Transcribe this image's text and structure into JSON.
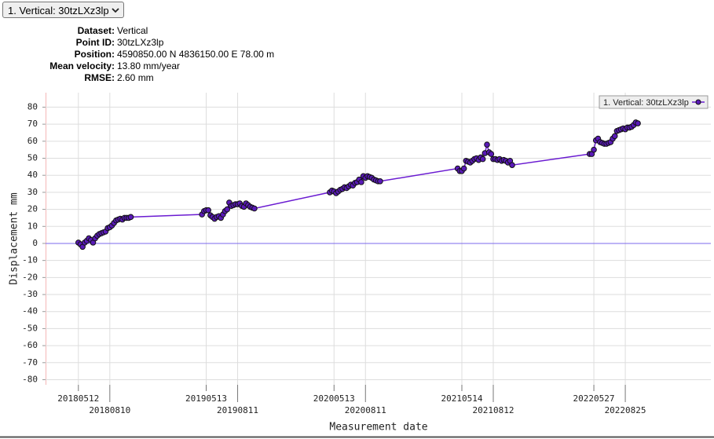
{
  "dropdown": "1. Vertical: 30tzLXz3lp",
  "info": [
    {
      "label": "Dataset:",
      "value": "Vertical"
    },
    {
      "label": "Point ID:",
      "value": "30tzLXz3lp"
    },
    {
      "label": "Position:",
      "value": "4590850.00 N 4836150.00 E 78.00 m"
    },
    {
      "label": "Mean velocity:",
      "value": "13.80 mm/year"
    },
    {
      "label": "RMSE:",
      "value": "2.60 mm"
    }
  ],
  "chart_data": {
    "type": "line",
    "x_label": "Measurement date",
    "y_label": "Displacement mm",
    "xlim": [
      "20180207",
      "20230427"
    ],
    "xticks": [
      "20180512",
      "20180810",
      "20190513",
      "20190811",
      "20200513",
      "20200811",
      "20210514",
      "20210812",
      "20220527",
      "20220825"
    ],
    "ylim": [
      -83,
      88.5
    ],
    "yticks": [
      80,
      70,
      60,
      50,
      40,
      30,
      20,
      10,
      0,
      -10,
      -20,
      -30,
      -40,
      -50,
      -60,
      -70,
      -80
    ],
    "grid": true,
    "zero_line_color": "#7b68ee",
    "legend": "upper right",
    "x": [
      "20180512",
      "20180518",
      "20180524",
      "20180530",
      "20180605",
      "20180611",
      "20180617",
      "20180623",
      "20180629",
      "20180705",
      "20180711",
      "20180717",
      "20180723",
      "20180729",
      "20180804",
      "20180810",
      "20180816",
      "20180822",
      "20180828",
      "20180903",
      "20180909",
      "20180915",
      "20180921",
      "20180927",
      "20181003",
      "20181009",
      "20190501",
      "20190507",
      "20190513",
      "20190519",
      "20190525",
      "20190531",
      "20190606",
      "20190612",
      "20190618",
      "20190624",
      "20190630",
      "20190706",
      "20190712",
      "20190718",
      "20190724",
      "20190730",
      "20190805",
      "20190811",
      "20190817",
      "20190823",
      "20190829",
      "20190904",
      "20190910",
      "20190916",
      "20190922",
      "20190928",
      "20200501",
      "20200507",
      "20200513",
      "20200519",
      "20200525",
      "20200531",
      "20200606",
      "20200612",
      "20200618",
      "20200624",
      "20200630",
      "20200706",
      "20200712",
      "20200718",
      "20200724",
      "20200730",
      "20200805",
      "20200811",
      "20200817",
      "20200823",
      "20200829",
      "20200904",
      "20200910",
      "20200916",
      "20200922",
      "20210502",
      "20210508",
      "20210514",
      "20210520",
      "20210526",
      "20210601",
      "20210607",
      "20210613",
      "20210619",
      "20210625",
      "20210701",
      "20210707",
      "20210713",
      "20210719",
      "20210725",
      "20210731",
      "20210806",
      "20210812",
      "20210818",
      "20210824",
      "20210830",
      "20210905",
      "20210911",
      "20210917",
      "20210923",
      "20210929",
      "20211005",
      "20220515",
      "20220521",
      "20220527",
      "20220602",
      "20220608",
      "20220614",
      "20220620",
      "20220626",
      "20220702",
      "20220708",
      "20220714",
      "20220720",
      "20220726",
      "20220801",
      "20220807",
      "20220813",
      "20220819",
      "20220825",
      "20220831",
      "20220906",
      "20220912",
      "20220918",
      "20220924",
      "20220930"
    ],
    "series": [
      {
        "name": "1. Vertical: 30tzLXz3lp",
        "color": "#6a1bd1",
        "marker_color": "#5a1ab8",
        "values": [
          0.5,
          -0.5,
          -2,
          0.5,
          1.5,
          3,
          2,
          0.5,
          3,
          4.5,
          5.5,
          6,
          6.5,
          7,
          9,
          9.5,
          10.5,
          12,
          13.5,
          14,
          14.5,
          14,
          15,
          15,
          15,
          15.5,
          17,
          19,
          19.5,
          19.5,
          16.5,
          15.5,
          14.5,
          15.5,
          16,
          15,
          17,
          19,
          20,
          24,
          22,
          22.5,
          23,
          23,
          23.5,
          22,
          21.5,
          23.5,
          22.5,
          21.5,
          21,
          20.5,
          30,
          31,
          30.5,
          29.5,
          30.5,
          31.5,
          32,
          33,
          32.5,
          33.5,
          34.5,
          34,
          35.5,
          36,
          37.5,
          36,
          39.5,
          38.5,
          39.5,
          39,
          38.5,
          37.5,
          37,
          36.5,
          36.5,
          44,
          42.5,
          42.5,
          44,
          48.5,
          48,
          47.5,
          48.5,
          49.5,
          50,
          49,
          50.5,
          49.5,
          53,
          58,
          53.5,
          52.5,
          49.5,
          49.5,
          49,
          49.5,
          48.5,
          49,
          48.5,
          47.5,
          48.5,
          46,
          52.5,
          52.5,
          55,
          60.5,
          61.5,
          59.5,
          59,
          58.5,
          58.5,
          59,
          59.5,
          61.5,
          63,
          66,
          66.5,
          67,
          67.5,
          67,
          68,
          68,
          68.5,
          69.5,
          71,
          70.5
        ]
      }
    ]
  }
}
